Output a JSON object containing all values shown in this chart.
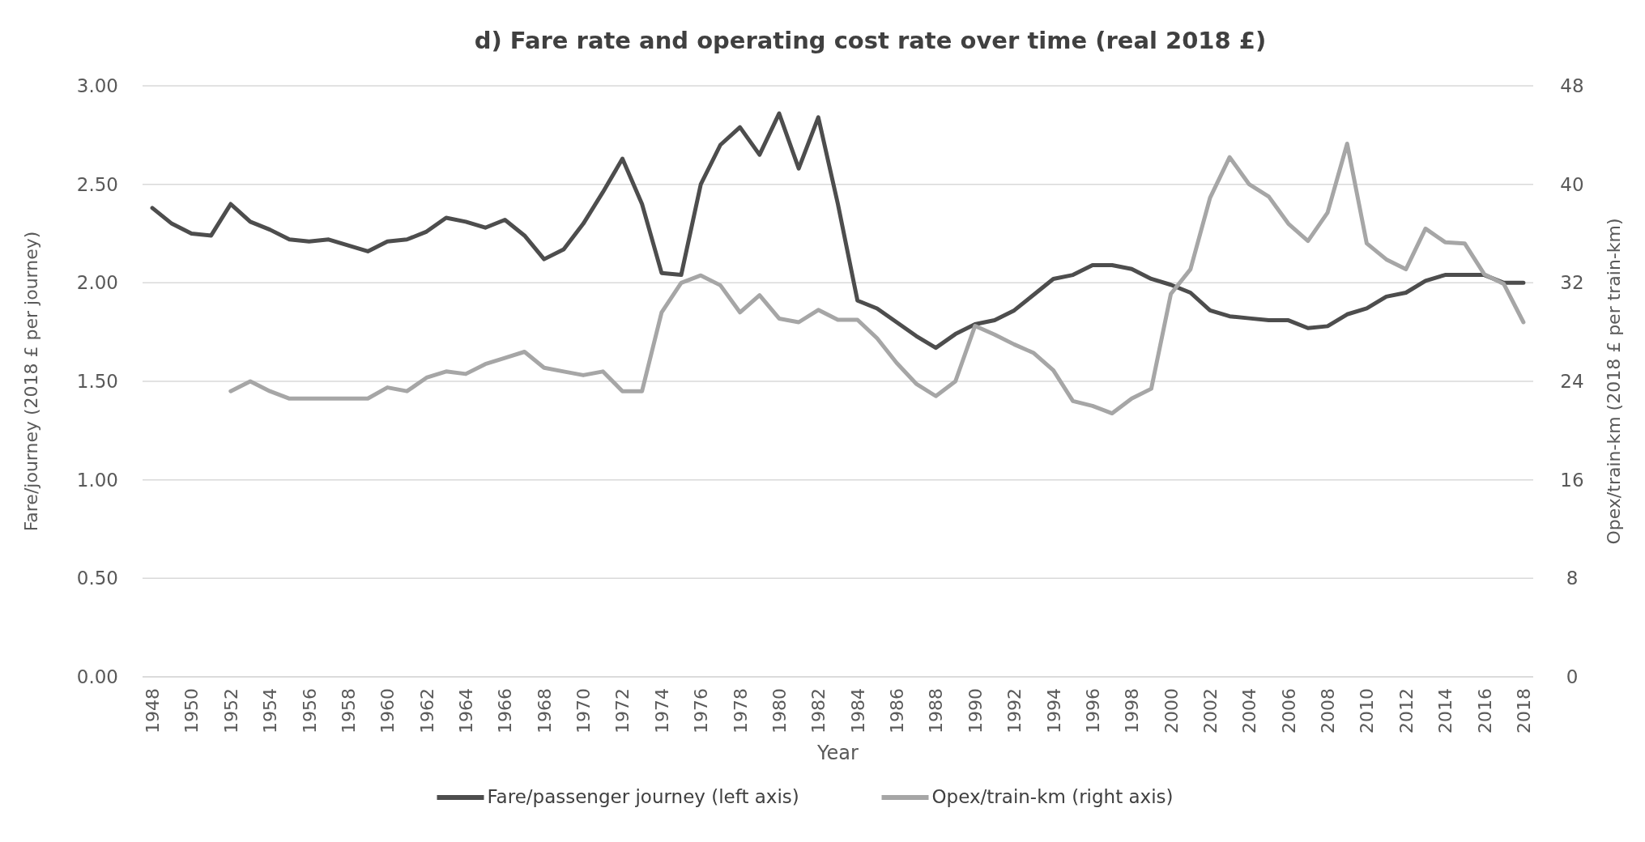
{
  "chart_data": {
    "type": "line",
    "title": "d) Fare rate and operating cost rate over time (real 2018 £)",
    "xlabel": "Year",
    "ylabel": "Fare/journey (2018 £ per journey)",
    "y2label": "Opex/train-km (2018 £ per train-km)",
    "x": [
      1948,
      1949,
      1950,
      1951,
      1952,
      1953,
      1954,
      1955,
      1956,
      1957,
      1958,
      1959,
      1960,
      1961,
      1962,
      1963,
      1964,
      1965,
      1966,
      1967,
      1968,
      1969,
      1970,
      1971,
      1972,
      1973,
      1974,
      1975,
      1976,
      1977,
      1978,
      1979,
      1980,
      1981,
      1982,
      1983,
      1984,
      1985,
      1986,
      1987,
      1988,
      1989,
      1990,
      1991,
      1992,
      1993,
      1994,
      1995,
      1996,
      1997,
      1998,
      1999,
      2000,
      2001,
      2002,
      2003,
      2004,
      2005,
      2006,
      2007,
      2008,
      2009,
      2010,
      2011,
      2012,
      2013,
      2014,
      2015,
      2016,
      2017,
      2018
    ],
    "series": [
      {
        "name": "Fare/passenger journey (left axis)",
        "color": "#4d4d4d",
        "values": [
          2.38,
          2.3,
          2.25,
          2.24,
          2.4,
          2.31,
          2.27,
          2.22,
          2.21,
          2.22,
          2.19,
          2.16,
          2.21,
          2.22,
          2.26,
          2.33,
          2.31,
          2.28,
          2.32,
          2.24,
          2.12,
          2.17,
          2.3,
          2.46,
          2.63,
          2.4,
          2.05,
          2.04,
          2.5,
          2.7,
          2.79,
          2.65,
          2.86,
          2.58,
          2.84,
          2.4,
          1.91,
          1.87,
          1.8,
          1.73,
          1.67,
          1.74,
          1.79,
          1.81,
          1.86,
          1.94,
          2.02,
          2.04,
          2.09,
          2.09,
          2.07,
          2.02,
          1.99,
          1.95,
          1.86,
          1.83,
          1.82,
          1.81,
          1.81,
          1.77,
          1.78,
          1.84,
          1.87,
          1.93,
          1.95,
          2.01,
          2.04,
          2.04,
          2.04,
          2.0,
          2.0
        ]
      },
      {
        "name": "Opex/train-km (right axis)",
        "color": "#a6a6a6",
        "axis": "y2",
        "values": [
          null,
          null,
          null,
          null,
          23.2,
          24,
          23.2,
          22.6,
          22.6,
          22.6,
          22.6,
          22.6,
          23.5,
          23.2,
          24.3,
          24.8,
          24.6,
          25.4,
          25.9,
          26.4,
          25.1,
          24.8,
          24.5,
          24.8,
          23.2,
          23.2,
          29.6,
          32,
          32.6,
          31.8,
          29.6,
          31,
          29.1,
          28.8,
          29.8,
          29,
          29,
          27.5,
          25.5,
          23.8,
          22.8,
          24,
          28.5,
          27.8,
          27,
          26.3,
          24.9,
          22.4,
          22,
          21.4,
          22.6,
          23.4,
          31.1,
          33.1,
          38.9,
          42.2,
          40,
          39,
          36.8,
          35.4,
          37.7,
          43.3,
          35.2,
          33.9,
          33.1,
          36.4,
          35.3,
          35.2,
          32.7,
          31.9,
          28.8
        ]
      }
    ],
    "xlim": [
      1947.5,
      2018.5
    ],
    "xticks": [
      1948,
      1950,
      1952,
      1954,
      1956,
      1958,
      1960,
      1962,
      1964,
      1966,
      1968,
      1970,
      1972,
      1974,
      1976,
      1978,
      1980,
      1982,
      1984,
      1986,
      1988,
      1990,
      1992,
      1994,
      1996,
      1998,
      2000,
      2002,
      2004,
      2006,
      2008,
      2010,
      2012,
      2014,
      2016,
      2018
    ],
    "ylim": [
      0,
      3
    ],
    "yticks": [
      {
        "value": 0,
        "label": "0.00"
      },
      {
        "value": 0.5,
        "label": "0.50"
      },
      {
        "value": 1,
        "label": "1.00"
      },
      {
        "value": 1.5,
        "label": "1.50"
      },
      {
        "value": 2,
        "label": "2.00"
      },
      {
        "value": 2.5,
        "label": "2.50"
      },
      {
        "value": 3,
        "label": "3.00"
      }
    ],
    "y2lim": [
      0,
      48
    ],
    "y2ticks": [
      0,
      8,
      16,
      24,
      32,
      40,
      48
    ],
    "grid": "y",
    "legend": "bottom",
    "marker": "none",
    "line_style": "solid"
  }
}
